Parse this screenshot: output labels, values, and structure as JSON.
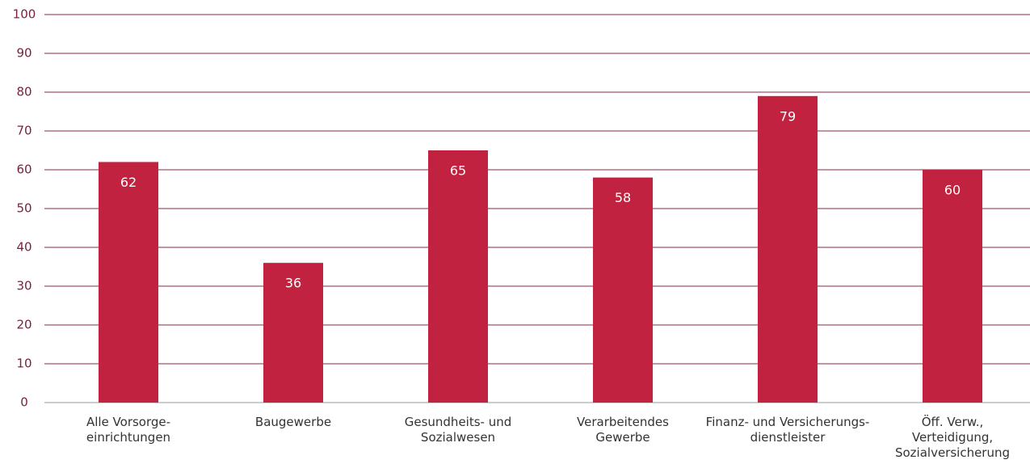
{
  "chart_data": {
    "type": "bar",
    "categories": [
      "Alle Vorsorge-\neinrichtungen",
      "Baugewerbe",
      "Gesundheits- und\nSozialwesen",
      "Verarbeitendes\nGewerbe",
      "Finanz- und Versicherungs-\ndienstleister",
      "Öff. Verw.,\nVerteidigung,\nSozialversicherung"
    ],
    "values": [
      62,
      36,
      65,
      58,
      79,
      60
    ],
    "color": "#c0223f",
    "ylim": [
      0,
      100
    ],
    "yticks": [
      0,
      10,
      20,
      30,
      40,
      50,
      60,
      70,
      80,
      90,
      100
    ],
    "grid": true
  }
}
